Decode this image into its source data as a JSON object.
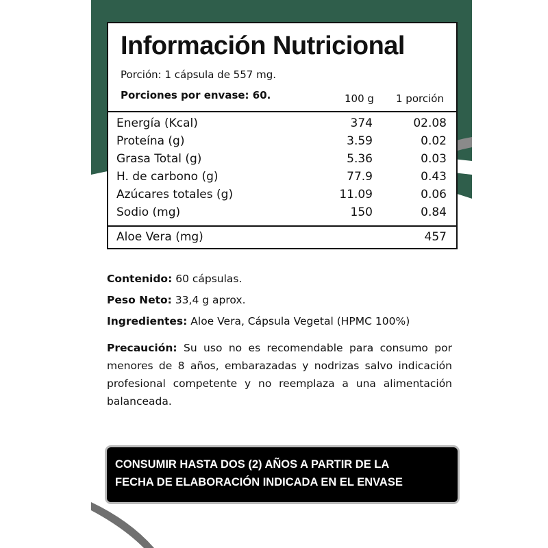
{
  "colors": {
    "green": "#2f5e4b",
    "grey": "#7a7a7a",
    "box": "#000000"
  },
  "table": {
    "title": "Información Nutricional",
    "portion": "Porción: 1 cápsula de 557 mg.",
    "servings": "Porciones por envase: 60.",
    "col_100g": "100 g",
    "col_portion": "1 porción",
    "rows": [
      {
        "name": "Energía (Kcal)",
        "per100": "374",
        "perPortion": "02.08"
      },
      {
        "name": "Proteína (g)",
        "per100": "3.59",
        "perPortion": "0.02"
      },
      {
        "name": "Grasa Total (g)",
        "per100": "5.36",
        "perPortion": "0.03"
      },
      {
        "name": "H. de carbono (g)",
        "per100": "77.9",
        "perPortion": "0.43"
      },
      {
        "name": "Azúcares totales (g)",
        "per100": "11.09",
        "perPortion": "0.06"
      },
      {
        "name": "Sodio (mg)",
        "per100": "150",
        "perPortion": "0.84"
      }
    ],
    "extra": {
      "name": "Aloe Vera (mg)",
      "value": "457"
    }
  },
  "info": {
    "contenido_label": "Contenido:",
    "contenido": " 60 cápsulas.",
    "peso_label": "Peso Neto:",
    "peso": " 33,4 g aprox.",
    "ingredientes_label": "Ingredientes:",
    "ingredientes": " Aloe Vera, Cápsula Vegetal (HPMC 100%)",
    "precaucion_label": "Precaución:",
    "precaucion": " Su uso no es recomendable para consumo por menores de 8 años, embarazadas y nodrizas salvo indicación profesional competente y no reemplaza a una alimentación balanceada."
  },
  "warning": {
    "line1": "CONSUMIR HASTA DOS (2) AÑOS A PARTIR DE LA",
    "line2": "FECHA DE ELABORACIÓN INDICADA EN EL ENVASE"
  }
}
